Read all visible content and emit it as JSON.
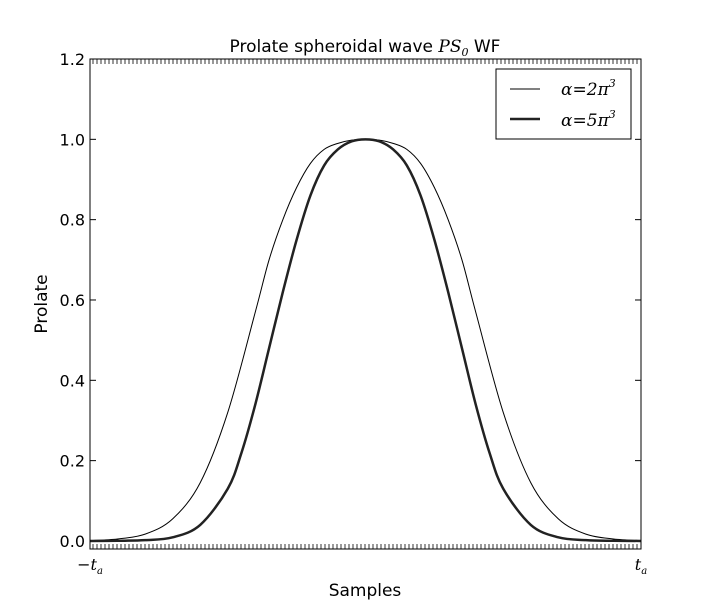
{
  "chart_data": {
    "type": "line",
    "title": {
      "prefix": "Prolate spheroidal wave ",
      "math_main": "PS",
      "math_sub": "0",
      "suffix": " WF"
    },
    "xlabel": "Samples",
    "ylabel": "Prolate",
    "xlim": [
      -1,
      1
    ],
    "ylim": [
      -0.02,
      1.2
    ],
    "x_ticks": [
      {
        "value": -1,
        "main": "−t",
        "sub": "a"
      },
      {
        "value": 1,
        "main": "t",
        "sub": "a"
      }
    ],
    "y_ticks": [
      0.0,
      0.2,
      0.4,
      0.6,
      0.8,
      1.0,
      1.2
    ],
    "y_tick_labels": [
      "0.0",
      "0.2",
      "0.4",
      "0.6",
      "0.8",
      "1.0",
      "1.2"
    ],
    "grid": false,
    "legend_position": "top-right",
    "series": [
      {
        "name": {
          "lhs": "α",
          "eq": "=",
          "coef": "2",
          "base": "π",
          "exp": "3"
        },
        "line_width": "thin",
        "color": "#000000",
        "x": [
          -1.0,
          -0.9,
          -0.8,
          -0.7,
          -0.6,
          -0.5,
          -0.4,
          -0.35,
          -0.3,
          -0.25,
          -0.2,
          -0.15,
          -0.1,
          -0.05,
          0.0,
          0.05,
          0.1,
          0.15,
          0.2,
          0.25,
          0.3,
          0.35,
          0.4,
          0.5,
          0.6,
          0.7,
          0.8,
          0.9,
          1.0
        ],
        "y": [
          0.001,
          0.005,
          0.017,
          0.055,
          0.145,
          0.32,
          0.57,
          0.7,
          0.8,
          0.88,
          0.94,
          0.975,
          0.99,
          0.998,
          1.0,
          0.998,
          0.99,
          0.975,
          0.94,
          0.88,
          0.8,
          0.7,
          0.57,
          0.32,
          0.145,
          0.055,
          0.017,
          0.005,
          0.001
        ]
      },
      {
        "name": {
          "lhs": "α",
          "eq": "=",
          "coef": "5",
          "base": "π",
          "exp": "3"
        },
        "line_width": "thick",
        "color": "#222222",
        "x": [
          -1.0,
          -0.9,
          -0.8,
          -0.7,
          -0.6,
          -0.5,
          -0.45,
          -0.4,
          -0.35,
          -0.3,
          -0.25,
          -0.2,
          -0.15,
          -0.1,
          -0.05,
          0.0,
          0.05,
          0.1,
          0.15,
          0.2,
          0.25,
          0.3,
          0.35,
          0.4,
          0.45,
          0.5,
          0.6,
          0.7,
          0.8,
          0.9,
          1.0
        ],
        "y": [
          0.0,
          0.0005,
          0.002,
          0.009,
          0.04,
          0.13,
          0.22,
          0.34,
          0.48,
          0.62,
          0.75,
          0.86,
          0.935,
          0.975,
          0.995,
          1.0,
          0.995,
          0.975,
          0.935,
          0.86,
          0.75,
          0.62,
          0.48,
          0.34,
          0.22,
          0.13,
          0.04,
          0.009,
          0.002,
          0.0005,
          0.0
        ]
      }
    ]
  }
}
